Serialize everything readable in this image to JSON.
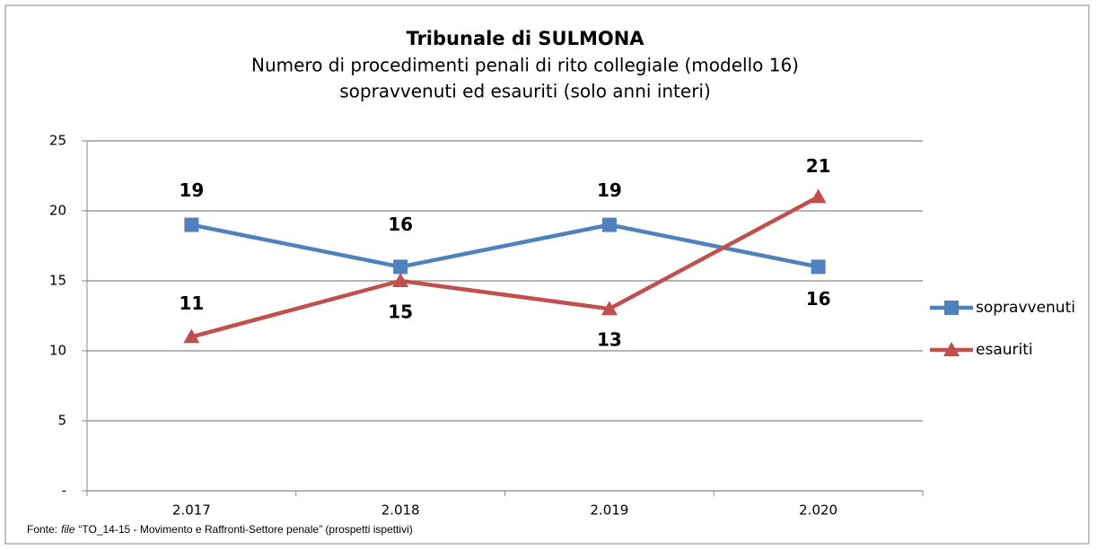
{
  "chart_data": {
    "type": "line",
    "title": "Tribunale di SULMONA",
    "subtitle": [
      "Numero di procedimenti penali di rito collegiale (modello 16)",
      "sopravvenuti ed esauriti (solo anni interi)"
    ],
    "categories": [
      "2.017",
      "2.018",
      "2.019",
      "2.020"
    ],
    "series": [
      {
        "name": "sopravvenuti",
        "color": "#4f81bd",
        "label_color": "#1f7cc1",
        "marker": "square",
        "values": [
          19,
          16,
          19,
          16
        ]
      },
      {
        "name": "esauriti",
        "color": "#c0504d",
        "label_color": "#c0272d",
        "marker": "triangle",
        "values": [
          11,
          15,
          13,
          21
        ]
      }
    ],
    "ylim": [
      0,
      25
    ],
    "yticks": [
      {
        "value": 0,
        "label": "-"
      },
      5,
      10,
      15,
      20,
      25
    ],
    "grid": true,
    "legend": "right",
    "source": {
      "prefix": "Fonte:",
      "italic": "file",
      "rest": "“TO_14-15 - Movimento e Raffronti-Settore penale” (prospetti ispettivi)"
    }
  }
}
